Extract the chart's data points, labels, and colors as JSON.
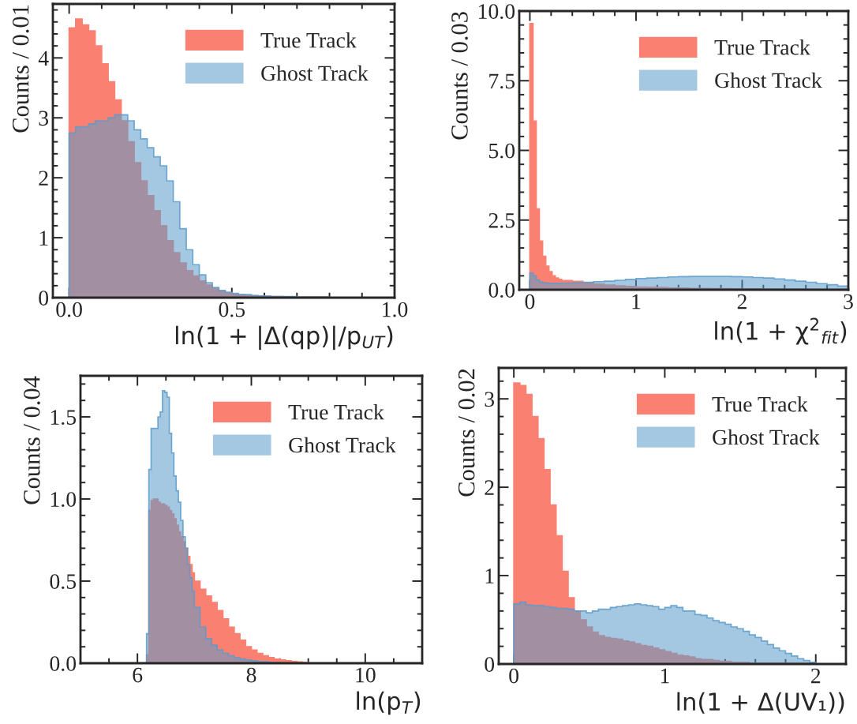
{
  "chart_data": [
    {
      "type": "histogram",
      "xlabel": "ln(1 + |Δ(qp)|/p$_{UT}$)",
      "ylabel": "Counts / 0.01",
      "legend": "top right",
      "bins": [
        0,
        0.02,
        0.04,
        0.06,
        0.08,
        0.1,
        0.12,
        0.14,
        0.16,
        0.18,
        0.2,
        0.22,
        0.24,
        0.26,
        0.28,
        0.3,
        0.32,
        0.34,
        0.36,
        0.38,
        0.4,
        0.42,
        0.44,
        0.46,
        0.48,
        0.5,
        0.52,
        0.54,
        0.56,
        0.58,
        0.6,
        0.62,
        0.64,
        0.66,
        0.68,
        0.7,
        0.72,
        0.74,
        0.76,
        0.78,
        0.8
      ],
      "series": [
        {
          "name": "True Track",
          "color": "#fa8072",
          "values": [
            4.5,
            4.65,
            4.55,
            4.45,
            4.2,
            3.9,
            3.6,
            3.3,
            2.95,
            2.6,
            2.25,
            1.95,
            1.7,
            1.45,
            1.2,
            0.95,
            0.75,
            0.58,
            0.45,
            0.36,
            0.28,
            0.21,
            0.15,
            0.11,
            0.08,
            0.06,
            0.05,
            0.04,
            0.03,
            0.03,
            0.02,
            0.02,
            0.02,
            0.01,
            0.01,
            0.01,
            0.01,
            0.01,
            0.01,
            0.01
          ]
        },
        {
          "name": "Ghost Track",
          "color": "#5a9bcb",
          "values": [
            2.75,
            2.85,
            2.85,
            2.9,
            2.95,
            2.95,
            3.0,
            3.05,
            3.05,
            2.95,
            2.8,
            2.65,
            2.5,
            2.35,
            2.2,
            1.95,
            1.6,
            1.15,
            0.8,
            0.55,
            0.38,
            0.25,
            0.17,
            0.12,
            0.09,
            0.07,
            0.05,
            0.05,
            0.04,
            0.03,
            0.03,
            0.02,
            0.02,
            0.02,
            0.02,
            0.01,
            0.01,
            0.01,
            0.01,
            0.01
          ]
        }
      ],
      "xlim": [
        -0.05,
        1.0
      ],
      "ylim": [
        0,
        4.9
      ],
      "xticks": [
        {
          "value": 0,
          "label": "0.0"
        },
        0.5,
        {
          "value": 1,
          "label": "1.0"
        }
      ],
      "yticks": [
        0,
        1,
        2,
        3,
        4
      ]
    },
    {
      "type": "histogram",
      "xlabel": "ln(1 + χ$^{2}$$_{fit}$)",
      "ylabel": "Counts / 0.03",
      "legend": "top right",
      "bins": [
        0,
        0.03,
        0.06,
        0.09,
        0.12,
        0.15,
        0.18,
        0.21,
        0.24,
        0.27,
        0.3,
        0.4,
        0.5,
        0.6,
        0.7,
        0.8,
        0.9,
        1.0,
        1.1,
        1.2,
        1.3,
        1.4,
        1.5,
        1.6,
        1.7,
        1.8,
        1.9,
        2.0,
        2.1,
        2.2,
        2.3,
        2.4,
        2.5,
        2.6,
        2.7,
        2.8,
        2.9,
        3.0
      ],
      "series": [
        {
          "name": "True Track",
          "color": "#fa8072",
          "values": [
            9.55,
            6.05,
            2.9,
            1.75,
            1.2,
            0.85,
            0.65,
            0.5,
            0.42,
            0.37,
            0.33,
            0.3,
            0.25,
            0.2,
            0.17,
            0.14,
            0.12,
            0.1,
            0.09,
            0.08,
            0.07,
            0.06,
            0.05,
            0.05,
            0.04,
            0.04,
            0.03,
            0.03,
            0.03,
            0.02,
            0.02,
            0.02,
            0.02,
            0.01,
            0.01,
            0.01,
            0.01
          ]
        },
        {
          "name": "Ghost Track",
          "color": "#5a9bcb",
          "values": [
            0.6,
            0.5,
            0.35,
            0.28,
            0.25,
            0.24,
            0.23,
            0.23,
            0.23,
            0.23,
            0.24,
            0.25,
            0.27,
            0.29,
            0.31,
            0.34,
            0.37,
            0.4,
            0.42,
            0.44,
            0.46,
            0.47,
            0.48,
            0.48,
            0.48,
            0.48,
            0.47,
            0.46,
            0.44,
            0.42,
            0.39,
            0.35,
            0.31,
            0.27,
            0.22,
            0.18,
            0.13
          ]
        }
      ],
      "xlim": [
        -0.1,
        3.0
      ],
      "ylim": [
        0,
        10
      ],
      "xticks": [
        0,
        1,
        2,
        3
      ],
      "yticks": [
        {
          "value": 0,
          "label": "0.0"
        },
        2.5,
        {
          "value": 5,
          "label": "5.0"
        },
        7.5,
        {
          "value": 10,
          "label": "10.0"
        }
      ]
    },
    {
      "type": "histogram",
      "xlabel": "ln(p$_{T}$)",
      "ylabel": "Counts / 0.04",
      "legend": "top right",
      "bins": [
        6.16,
        6.2,
        6.24,
        6.28,
        6.32,
        6.36,
        6.4,
        6.44,
        6.48,
        6.52,
        6.56,
        6.6,
        6.64,
        6.68,
        6.72,
        6.76,
        6.8,
        6.84,
        6.88,
        6.92,
        6.96,
        7.0,
        7.1,
        7.2,
        7.3,
        7.4,
        7.5,
        7.6,
        7.7,
        7.8,
        7.9,
        8.0,
        8.1,
        8.2,
        8.3,
        8.4,
        8.5,
        8.6,
        8.7,
        8.8,
        8.9,
        9.0
      ],
      "series": [
        {
          "name": "True Track",
          "color": "#fa8072",
          "values": [
            0.05,
            0.93,
            0.99,
            1.0,
            1.0,
            0.98,
            0.97,
            0.97,
            0.96,
            0.95,
            0.93,
            0.91,
            0.88,
            0.84,
            0.8,
            0.77,
            0.74,
            0.7,
            0.65,
            0.6,
            0.55,
            0.5,
            0.45,
            0.41,
            0.37,
            0.32,
            0.27,
            0.22,
            0.18,
            0.14,
            0.1,
            0.08,
            0.06,
            0.045,
            0.035,
            0.025,
            0.02,
            0.015,
            0.01,
            0.008,
            0.005
          ]
        },
        {
          "name": "Ghost Track",
          "color": "#5a9bcb",
          "values": [
            0.18,
            1.18,
            1.43,
            1.43,
            1.43,
            1.5,
            1.53,
            1.66,
            1.65,
            1.62,
            1.4,
            1.28,
            1.14,
            1.05,
            0.98,
            0.87,
            0.77,
            0.7,
            0.6,
            0.52,
            0.44,
            0.34,
            0.22,
            0.15,
            0.11,
            0.08,
            0.06,
            0.045,
            0.035,
            0.025,
            0.02,
            0.015,
            0.01,
            0.01,
            0.005,
            0.005,
            0,
            0,
            0,
            0,
            0
          ]
        }
      ],
      "xlim": [
        5,
        11
      ],
      "ylim": [
        0,
        1.75
      ],
      "xticks": [
        6,
        8,
        10
      ],
      "yticks": [
        {
          "value": 0,
          "label": "0.0"
        },
        0.5,
        {
          "value": 1,
          "label": "1.0"
        },
        1.5
      ]
    },
    {
      "type": "histogram",
      "xlabel": "ln(1 + Δ(UV₁))",
      "ylabel": "Counts / 0.02",
      "legend": "top right",
      "bins": [
        0,
        0.04,
        0.08,
        0.12,
        0.16,
        0.2,
        0.24,
        0.28,
        0.32,
        0.36,
        0.4,
        0.44,
        0.48,
        0.52,
        0.56,
        0.6,
        0.64,
        0.68,
        0.72,
        0.76,
        0.8,
        0.84,
        0.88,
        0.92,
        0.96,
        1.0,
        1.04,
        1.08,
        1.12,
        1.16,
        1.2,
        1.24,
        1.28,
        1.32,
        1.36,
        1.4,
        1.44,
        1.48,
        1.52,
        1.56,
        1.6,
        1.64,
        1.68,
        1.72,
        1.76,
        1.8,
        1.84,
        1.88,
        1.92,
        1.96,
        2.0
      ],
      "series": [
        {
          "name": "True Track",
          "color": "#fa8072",
          "values": [
            3.18,
            3.15,
            3.05,
            2.8,
            2.55,
            2.2,
            1.8,
            1.45,
            1.05,
            0.75,
            0.6,
            0.5,
            0.42,
            0.36,
            0.32,
            0.3,
            0.29,
            0.28,
            0.26,
            0.25,
            0.23,
            0.21,
            0.2,
            0.18,
            0.16,
            0.14,
            0.12,
            0.1,
            0.09,
            0.08,
            0.06,
            0.05,
            0.05,
            0.04,
            0.03,
            0.03,
            0.02,
            0.02,
            0.02,
            0.01,
            0.01,
            0.01,
            0.01,
            0.01,
            0.01,
            0.01,
            0.01,
            0.01,
            0.01,
            0.01
          ]
        },
        {
          "name": "Ghost Track",
          "color": "#5a9bcb",
          "values": [
            0.68,
            0.7,
            0.67,
            0.66,
            0.66,
            0.65,
            0.64,
            0.63,
            0.63,
            0.62,
            0.6,
            0.6,
            0.58,
            0.6,
            0.62,
            0.62,
            0.64,
            0.65,
            0.66,
            0.67,
            0.68,
            0.67,
            0.66,
            0.65,
            0.62,
            0.64,
            0.66,
            0.64,
            0.6,
            0.6,
            0.56,
            0.55,
            0.52,
            0.49,
            0.47,
            0.45,
            0.42,
            0.4,
            0.37,
            0.33,
            0.3,
            0.26,
            0.22,
            0.18,
            0.15,
            0.12,
            0.09,
            0.06,
            0.04,
            0.02
          ]
        }
      ],
      "xlim": [
        -0.1,
        2.2
      ],
      "ylim": [
        0,
        3.35
      ],
      "xticks": [
        0,
        1,
        2
      ],
      "yticks": [
        0,
        1,
        2,
        3
      ]
    }
  ]
}
